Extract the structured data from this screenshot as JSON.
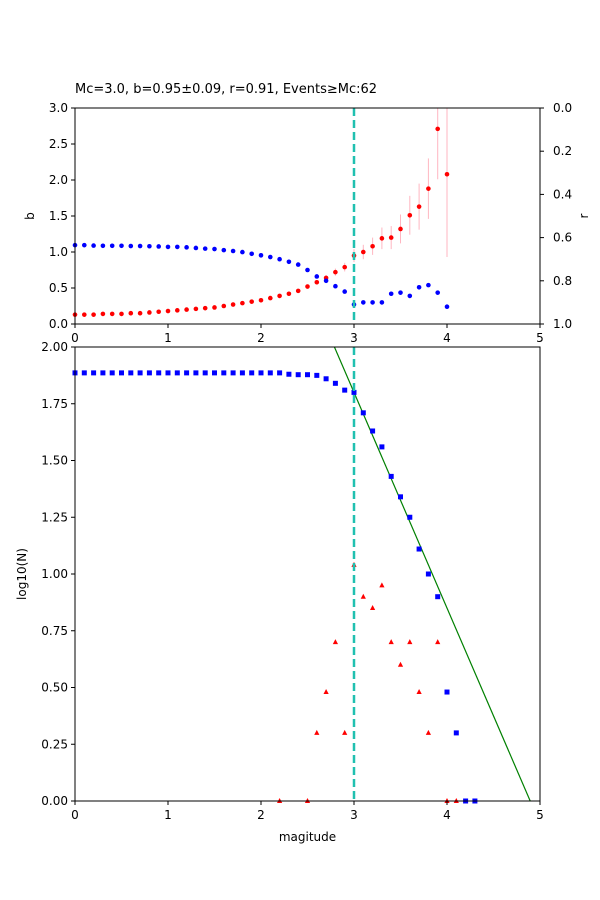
{
  "chart_data": [
    {
      "type": "scatter",
      "title": "Mc=3.0, b=0.95±0.09, r=0.91, Events≥Mc:62",
      "xlabel": "",
      "ylabel": "b",
      "ylabel_right": "r",
      "xlim": [
        0,
        5
      ],
      "ylim": [
        0,
        3
      ],
      "y2lim": [
        1,
        0
      ],
      "xticks": [
        "0",
        "1",
        "2",
        "3",
        "4",
        "5"
      ],
      "yticks": [
        "0.0",
        "0.5",
        "1.0",
        "1.5",
        "2.0",
        "2.5",
        "3.0"
      ],
      "y2ticks": [
        "0.0",
        "0.2",
        "0.4",
        "0.6",
        "0.8",
        "1.0"
      ],
      "grid": false,
      "mc_line": 3.0,
      "series": [
        {
          "color": "#ff0000",
          "axis": "left",
          "x": [
            0.0,
            0.1,
            0.2,
            0.3,
            0.4,
            0.5,
            0.6,
            0.7,
            0.8,
            0.9,
            1.0,
            1.1,
            1.2,
            1.3,
            1.4,
            1.5,
            1.6,
            1.7,
            1.8,
            1.9,
            2.0,
            2.1,
            2.2,
            2.3,
            2.4,
            2.5,
            2.6,
            2.7,
            2.8,
            2.9,
            3.0,
            3.1,
            3.2,
            3.3,
            3.4,
            3.5,
            3.6,
            3.7,
            3.8,
            3.9,
            4.0
          ],
          "y": [
            0.13,
            0.13,
            0.13,
            0.14,
            0.14,
            0.14,
            0.15,
            0.15,
            0.16,
            0.17,
            0.18,
            0.19,
            0.2,
            0.21,
            0.22,
            0.23,
            0.25,
            0.27,
            0.29,
            0.31,
            0.33,
            0.36,
            0.39,
            0.42,
            0.46,
            0.52,
            0.58,
            0.64,
            0.72,
            0.79,
            0.95,
            1.0,
            1.08,
            1.19,
            1.2,
            1.32,
            1.51,
            1.63,
            1.88,
            2.71,
            2.08
          ],
          "err": [
            0.01,
            0.01,
            0.01,
            0.01,
            0.01,
            0.01,
            0.01,
            0.01,
            0.01,
            0.01,
            0.01,
            0.01,
            0.01,
            0.01,
            0.01,
            0.01,
            0.01,
            0.01,
            0.01,
            0.01,
            0.02,
            0.02,
            0.02,
            0.02,
            0.02,
            0.03,
            0.03,
            0.04,
            0.05,
            0.06,
            0.09,
            0.1,
            0.12,
            0.15,
            0.16,
            0.2,
            0.27,
            0.32,
            0.42,
            0.7,
            1.15
          ]
        },
        {
          "color": "#0000ff",
          "axis": "right",
          "x": [
            0.0,
            0.1,
            0.2,
            0.3,
            0.4,
            0.5,
            0.6,
            0.7,
            0.8,
            0.9,
            1.0,
            1.1,
            1.2,
            1.3,
            1.4,
            1.5,
            1.6,
            1.7,
            1.8,
            1.9,
            2.0,
            2.1,
            2.2,
            2.3,
            2.4,
            2.5,
            2.6,
            2.7,
            2.8,
            2.9,
            3.0,
            3.1,
            3.2,
            3.3,
            3.4,
            3.5,
            3.6,
            3.7,
            3.8,
            3.9,
            4.0
          ],
          "y": [
            0.635,
            0.635,
            0.637,
            0.638,
            0.638,
            0.638,
            0.639,
            0.639,
            0.64,
            0.641,
            0.643,
            0.643,
            0.645,
            0.648,
            0.651,
            0.653,
            0.658,
            0.662,
            0.667,
            0.675,
            0.682,
            0.69,
            0.7,
            0.712,
            0.725,
            0.75,
            0.78,
            0.8,
            0.825,
            0.85,
            0.91,
            0.9,
            0.9,
            0.9,
            0.86,
            0.855,
            0.87,
            0.83,
            0.82,
            0.855,
            0.92
          ]
        }
      ]
    },
    {
      "type": "scatter",
      "title": "",
      "xlabel": "magitude",
      "ylabel": "log10(N)",
      "xlim": [
        0,
        5
      ],
      "ylim": [
        0,
        2
      ],
      "xticks": [
        "0",
        "1",
        "2",
        "3",
        "4",
        "5"
      ],
      "yticks": [
        "0.00",
        "0.25",
        "0.50",
        "0.75",
        "1.00",
        "1.25",
        "1.50",
        "1.75",
        "2.00"
      ],
      "grid": false,
      "mc_line": 3.0,
      "series": [
        {
          "color": "#0000ff",
          "marker": "square",
          "x": [
            0.0,
            0.1,
            0.2,
            0.3,
            0.4,
            0.5,
            0.6,
            0.7,
            0.8,
            0.9,
            1.0,
            1.1,
            1.2,
            1.3,
            1.4,
            1.5,
            1.6,
            1.7,
            1.8,
            1.9,
            2.0,
            2.1,
            2.2,
            2.3,
            2.4,
            2.5,
            2.6,
            2.7,
            2.8,
            2.9,
            3.0,
            3.1,
            3.2,
            3.3,
            3.4,
            3.5,
            3.6,
            3.7,
            3.8,
            3.9,
            4.0,
            4.1,
            4.2,
            4.3
          ],
          "y": [
            1.886,
            1.886,
            1.886,
            1.886,
            1.886,
            1.886,
            1.886,
            1.886,
            1.886,
            1.886,
            1.886,
            1.886,
            1.886,
            1.886,
            1.886,
            1.886,
            1.886,
            1.886,
            1.886,
            1.886,
            1.886,
            1.886,
            1.886,
            1.88,
            1.878,
            1.878,
            1.875,
            1.86,
            1.84,
            1.81,
            1.8,
            1.71,
            1.63,
            1.56,
            1.43,
            1.34,
            1.25,
            1.11,
            1.0,
            0.9,
            0.48,
            0.3,
            0.0,
            0.0
          ]
        },
        {
          "color": "#ff0000",
          "marker": "triangle",
          "x": [
            2.2,
            2.5,
            2.6,
            2.7,
            2.8,
            2.9,
            3.0,
            3.1,
            3.2,
            3.3,
            3.4,
            3.5,
            3.6,
            3.7,
            3.8,
            3.9,
            4.0,
            4.1
          ],
          "y": [
            0.0,
            0.0,
            0.3,
            0.48,
            0.7,
            0.3,
            1.04,
            0.9,
            0.85,
            0.95,
            0.7,
            0.6,
            0.7,
            0.48,
            0.3,
            0.7,
            0.0,
            0.0
          ]
        }
      ],
      "fit_line": {
        "color": "#008000",
        "a": 4.65,
        "b": 0.95
      }
    }
  ]
}
